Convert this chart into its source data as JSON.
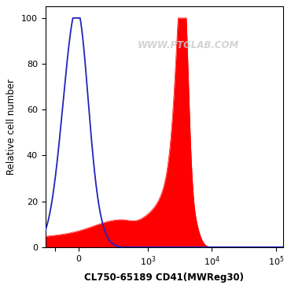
{
  "xlabel": "CL750-65189 CD41(MWReg30)",
  "ylabel": "Relative cell number",
  "ylim": [
    0,
    105
  ],
  "yticks": [
    0,
    20,
    40,
    60,
    80,
    100
  ],
  "watermark": "WWW.PTGLAB.COM",
  "blue_color": "#2222bb",
  "red_color": "#ff0000",
  "bg_color": "#ffffff",
  "symlog_linthresh": 300,
  "symlog_linscale": 0.5,
  "xlim_left": -280,
  "xlim_right": 130000,
  "xtick_positions": [
    -200,
    0,
    1000,
    10000,
    100000
  ],
  "xtick_labels": [
    "",
    "0",
    "10^3",
    "10^4",
    "10^5"
  ]
}
